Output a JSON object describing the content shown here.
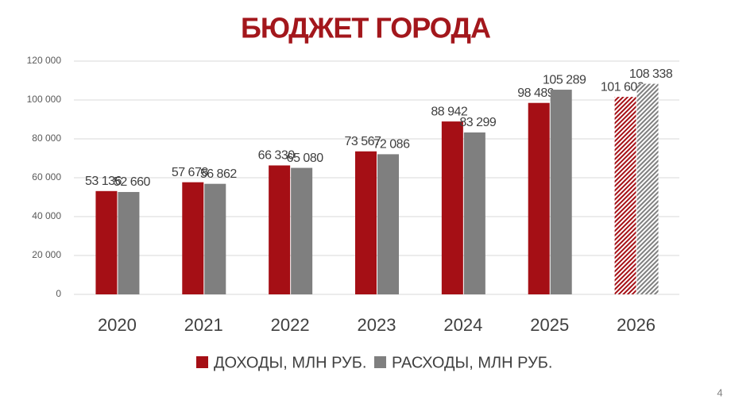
{
  "chart_data": {
    "type": "bar",
    "title": "БЮДЖЕТ ГОРОДА",
    "categories": [
      "2020",
      "2021",
      "2022",
      "2023",
      "2024",
      "2025",
      "2026"
    ],
    "series": [
      {
        "name": "ДОХОДЫ, МЛН РУБ.",
        "color": "#a50f15",
        "values": [
          53136,
          57678,
          66330,
          73567,
          88942,
          98489,
          101602
        ],
        "value_labels": [
          "53 136",
          "57 678",
          "66 330",
          "73 567",
          "88 942",
          "98 489",
          "101 602"
        ]
      },
      {
        "name": "РАСХОДЫ, МЛН РУБ.",
        "color": "#7f7f7f",
        "values": [
          52660,
          56862,
          65080,
          72086,
          83299,
          105289,
          108338
        ],
        "value_labels": [
          "52 660",
          "56 862",
          "65 080",
          "72 086",
          "83 299",
          "105 289",
          "108 338"
        ]
      }
    ],
    "hatched_categories": [
      "2026"
    ],
    "ylim": [
      0,
      120000
    ],
    "yticks": [
      0,
      {
        "value": 20000,
        "label": "20 000"
      },
      {
        "value": 40000,
        "label": "40 000"
      },
      {
        "value": 60000,
        "label": "60 000"
      },
      {
        "value": 80000,
        "label": "80 000"
      },
      {
        "value": 100000,
        "label": "100 000"
      },
      {
        "value": 120000,
        "label": "120 000"
      }
    ],
    "grid": true,
    "legend": "bottom"
  },
  "page_number": "4"
}
